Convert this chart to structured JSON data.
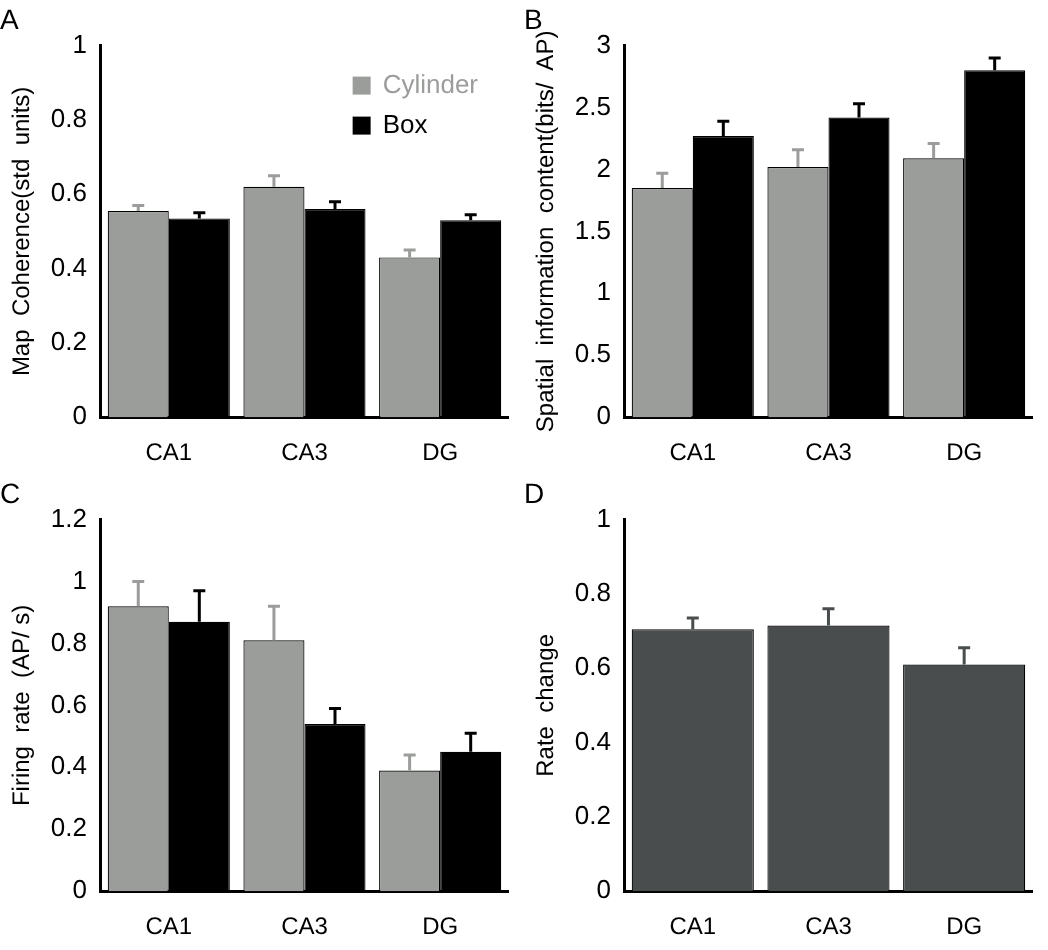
{
  "chart_data": [
    {
      "type": "bar",
      "title": "A",
      "ylabel": "Map  Coherence(std  units)",
      "categories": [
        "CA1",
        "CA3",
        "DG"
      ],
      "ylim": [
        0,
        1
      ],
      "yticks": [
        0,
        0.2,
        0.4,
        0.6,
        0.8,
        1
      ],
      "grid": false,
      "legend": "top right",
      "series": [
        {
          "name": "Cylinder",
          "color": "#9a9d9a",
          "values": [
            0.555,
            0.62,
            0.43
          ],
          "errors": [
            0.015,
            0.03,
            0.02
          ]
        },
        {
          "name": "Box",
          "color": "#000000",
          "values": [
            0.535,
            0.56,
            0.53
          ],
          "errors": [
            0.015,
            0.02,
            0.015
          ]
        }
      ]
    },
    {
      "type": "bar",
      "title": "B",
      "ylabel": "Spatial  information  content(bits/  AP)",
      "categories": [
        "CA1",
        "CA3",
        "DG"
      ],
      "ylim": [
        0,
        3
      ],
      "yticks": [
        0,
        0.5,
        1,
        1.5,
        2,
        2.5,
        3
      ],
      "grid": false,
      "series": [
        {
          "color": "#9a9d9a",
          "values": [
            1.85,
            2.02,
            2.09
          ],
          "errors": [
            0.12,
            0.14,
            0.12
          ]
        },
        {
          "color": "#000000",
          "values": [
            2.27,
            2.42,
            2.8
          ],
          "errors": [
            0.12,
            0.11,
            0.1
          ]
        }
      ]
    },
    {
      "type": "bar",
      "title": "C",
      "ylabel": "Firing  rate  (AP/ s)",
      "categories": [
        "CA1",
        "CA3",
        "DG"
      ],
      "ylim": [
        0,
        1.2
      ],
      "yticks": [
        0,
        0.2,
        0.4,
        0.6,
        0.8,
        1,
        1.2
      ],
      "grid": false,
      "series": [
        {
          "color": "#9a9d9a",
          "values": [
            0.92,
            0.81,
            0.39
          ],
          "errors": [
            0.08,
            0.11,
            0.05
          ]
        },
        {
          "color": "#000000",
          "values": [
            0.87,
            0.54,
            0.45
          ],
          "errors": [
            0.1,
            0.05,
            0.06
          ]
        }
      ]
    },
    {
      "type": "bar",
      "title": "D",
      "ylabel": "Rate  change",
      "categories": [
        "CA1",
        "CA3",
        "DG"
      ],
      "ylim": [
        0,
        1
      ],
      "yticks": [
        0,
        0.2,
        0.4,
        0.6,
        0.8,
        1
      ],
      "grid": false,
      "series": [
        {
          "color": "#4a4d4d",
          "values": [
            0.705,
            0.715,
            0.61
          ],
          "errors": [
            0.03,
            0.045,
            0.045
          ]
        }
      ]
    }
  ]
}
